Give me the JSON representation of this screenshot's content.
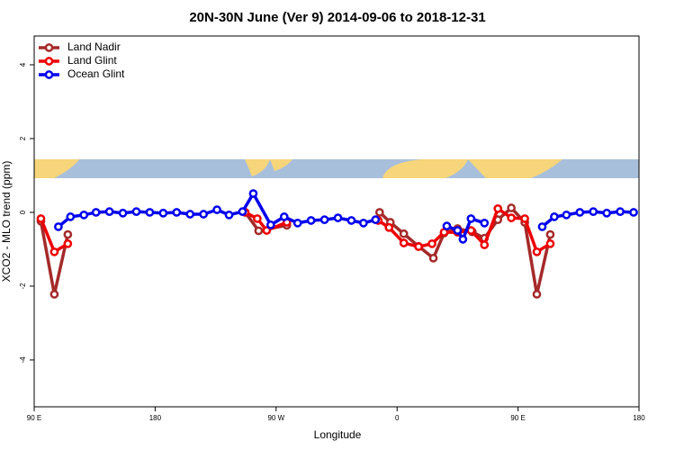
{
  "chart_data": {
    "type": "line",
    "title": "20N-30N June (Ver 9)   2014-09-06 to 2018-12-31",
    "xlabel": "Longitude",
    "ylabel": "XCO2 - MLO trend (ppm)",
    "xlim": [
      90,
      540
    ],
    "ylim": [
      -5.27,
      4.78
    ],
    "xticks": [
      {
        "value": 90,
        "label": "90 E"
      },
      180,
      {
        "value": 270,
        "label": "90 W"
      },
      {
        "value": 360,
        "label": "0"
      },
      {
        "value": 450,
        "label": "90 E"
      },
      {
        "value": 540,
        "label": "180"
      }
    ],
    "yticks": [
      4,
      2,
      0,
      -2,
      -4
    ],
    "legend": "upper left",
    "series": [
      {
        "name": "Land Nadir",
        "color": "#a52a2a",
        "x": [
          95,
          105,
          115,
          null,
          247,
          257,
          278,
          null,
          347,
          355,
          365,
          376,
          387,
          395,
          405,
          416,
          425,
          435,
          445,
          455,
          464,
          474
        ],
        "values": [
          -0.24,
          -2.22,
          -0.6,
          null,
          0,
          -0.5,
          -0.35,
          null,
          0.0,
          -0.27,
          -0.58,
          -0.92,
          -1.24,
          -0.56,
          -0.44,
          -0.53,
          -0.7,
          -0.2,
          0.12,
          -0.27,
          -2.22,
          -0.6
        ]
      },
      {
        "name": "Land Glint",
        "color": "#ee0000",
        "x": [
          95,
          105,
          115,
          null,
          247,
          256,
          263,
          278,
          null,
          346,
          354,
          365,
          376,
          386,
          395,
          405,
          415,
          425,
          435,
          445,
          455,
          464,
          474
        ],
        "values": [
          -0.17,
          -1.07,
          -0.85,
          null,
          0,
          -0.17,
          -0.49,
          -0.27,
          null,
          -0.22,
          -0.41,
          -0.83,
          -0.93,
          -0.85,
          -0.54,
          -0.54,
          -0.49,
          -0.88,
          0.1,
          -0.15,
          -0.17,
          -1.07,
          -0.85
        ]
      },
      {
        "name": "Ocean Glint",
        "color": "#0000ee",
        "x": [
          108,
          117,
          127,
          136,
          146,
          156,
          166,
          176,
          186,
          196,
          206,
          216,
          226,
          235,
          245,
          253,
          266,
          276,
          286,
          296,
          306,
          316,
          326,
          335,
          344,
          null,
          397,
          405,
          409,
          415,
          425,
          null,
          468,
          477,
          486,
          496,
          506,
          516,
          526,
          536
        ],
        "values": [
          -0.39,
          -0.12,
          -0.07,
          0,
          0.02,
          -0.02,
          0.02,
          0,
          -0.02,
          0,
          -0.05,
          -0.05,
          0.07,
          -0.07,
          0.02,
          0.51,
          -0.34,
          -0.12,
          -0.29,
          -0.22,
          -0.2,
          -0.15,
          -0.22,
          -0.29,
          -0.2,
          null,
          -0.37,
          -0.49,
          -0.73,
          -0.17,
          -0.29,
          null,
          -0.39,
          -0.12,
          -0.07,
          0,
          0.02,
          -0.02,
          0.02,
          0
        ]
      }
    ]
  }
}
